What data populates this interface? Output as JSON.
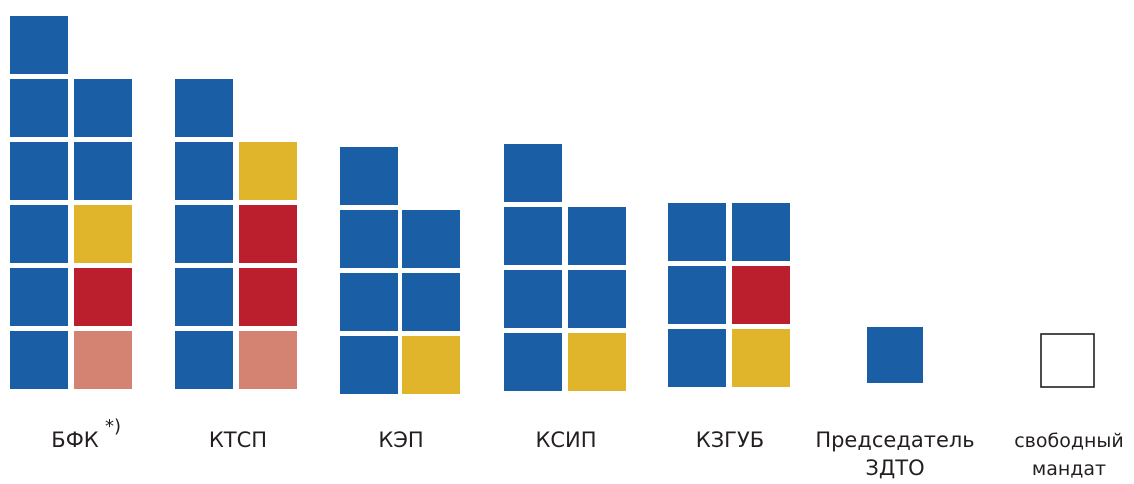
{
  "chart_data": {
    "type": "bar",
    "colors": {
      "blue": "#1a5fa6",
      "yellow": "#e0b52b",
      "red": "#bb1f2e",
      "salmon": "#d48272",
      "empty_fill": "#ffffff",
      "empty_stroke": "#231f20"
    },
    "groups": [
      {
        "name": "БФК",
        "label_lines": [
          "БФК"
        ],
        "footnote": "*)",
        "columns": [
          [
            "blue",
            "blue",
            "blue",
            "blue",
            "blue",
            "blue"
          ],
          [
            "salmon",
            "red",
            "yellow",
            "blue",
            "blue"
          ]
        ]
      },
      {
        "name": "КТСП",
        "label_lines": [
          "КТСП"
        ],
        "footnote": "",
        "columns": [
          [
            "blue",
            "blue",
            "blue",
            "blue",
            "blue"
          ],
          [
            "salmon",
            "red",
            "red",
            "yellow"
          ]
        ]
      },
      {
        "name": "КЭП",
        "label_lines": [
          "КЭП"
        ],
        "footnote": "",
        "columns": [
          [
            "blue",
            "blue",
            "blue",
            "blue"
          ],
          [
            "yellow",
            "blue",
            "blue"
          ]
        ]
      },
      {
        "name": "КСИП",
        "label_lines": [
          "КСИП"
        ],
        "footnote": "",
        "columns": [
          [
            "blue",
            "blue",
            "blue",
            "blue"
          ],
          [
            "yellow",
            "blue",
            "blue"
          ]
        ]
      },
      {
        "name": "КЗГУБ",
        "label_lines": [
          "КЗГУБ"
        ],
        "footnote": "",
        "columns": [
          [
            "blue",
            "blue",
            "blue"
          ],
          [
            "yellow",
            "red",
            "blue"
          ]
        ]
      },
      {
        "name": "Председатель ЗДТО",
        "label_lines": [
          "Председатель",
          "ЗДТО"
        ],
        "footnote": "",
        "columns": [
          [
            "blue"
          ]
        ]
      },
      {
        "name": "свободный мандат",
        "label_lines": [
          "свободный",
          "мандат"
        ],
        "footnote": "",
        "columns": [
          [
            "empty"
          ]
        ]
      }
    ]
  }
}
